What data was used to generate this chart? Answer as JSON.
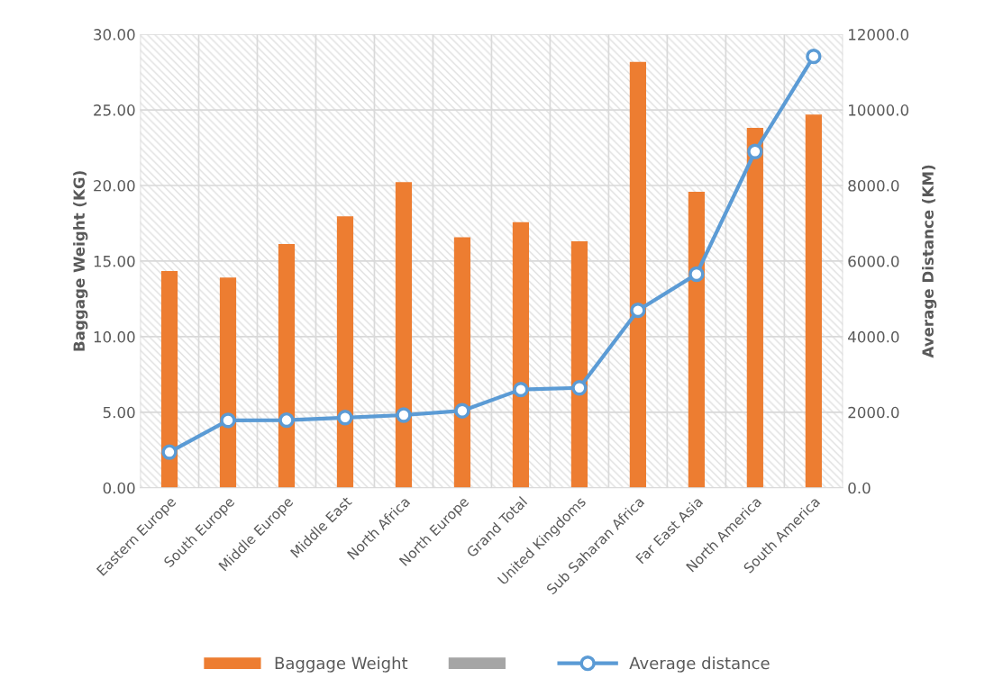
{
  "chart_data": {
    "type": "bar",
    "ylabel": "Baggage Weight (KG)",
    "y2label": "Average Distance (KM)",
    "categories": [
      "Eastern Europe",
      "South Europe",
      "Middle Europe",
      "Middle East",
      "North Africa",
      "North Europe",
      "Grand Total",
      "United Kingdoms",
      "Sub Saharan Africa",
      "Far East Asia",
      "North America",
      "South America"
    ],
    "series": [
      {
        "name": "Baggage Weight",
        "color": "#ed7d31",
        "values": [
          14.34,
          13.91,
          16.13,
          17.96,
          20.22,
          16.58,
          17.57,
          16.3,
          28.17,
          19.58,
          23.82,
          24.69
        ]
      },
      {
        "color": "#a5a5a5",
        "values": [
          null,
          null,
          null,
          null,
          null,
          null,
          null,
          null,
          null,
          null,
          null,
          null
        ]
      },
      {
        "name": "Average distance",
        "type": "line",
        "axis": "y2",
        "color": "#5b9bd5",
        "marker": "circle",
        "values": [
          945,
          1783,
          1791,
          1857,
          1923,
          2038,
          2599,
          2644,
          4696,
          5653,
          8900,
          11416
        ]
      }
    ],
    "ylim": [
      0,
      30
    ],
    "yticks": [
      {
        "value": 0,
        "label": "0.00"
      },
      {
        "value": 5,
        "label": "5.00"
      },
      {
        "value": 10,
        "label": "10.00"
      },
      {
        "value": 15,
        "label": "15.00"
      },
      {
        "value": 20,
        "label": "20.00"
      },
      {
        "value": 25,
        "label": "25.00"
      },
      {
        "value": 30,
        "label": "30.00"
      }
    ],
    "y2lim": [
      0,
      12000
    ],
    "y2ticks": [
      {
        "value": 0,
        "label": "0.0"
      },
      {
        "value": 2000,
        "label": "2000.0"
      },
      {
        "value": 4000,
        "label": "4000.0"
      },
      {
        "value": 6000,
        "label": "6000.0"
      },
      {
        "value": 8000,
        "label": "8000.0"
      },
      {
        "value": 10000,
        "label": "10000.0"
      },
      {
        "value": 12000,
        "label": "12000.0"
      }
    ],
    "grid": true,
    "legend": "bottom"
  }
}
